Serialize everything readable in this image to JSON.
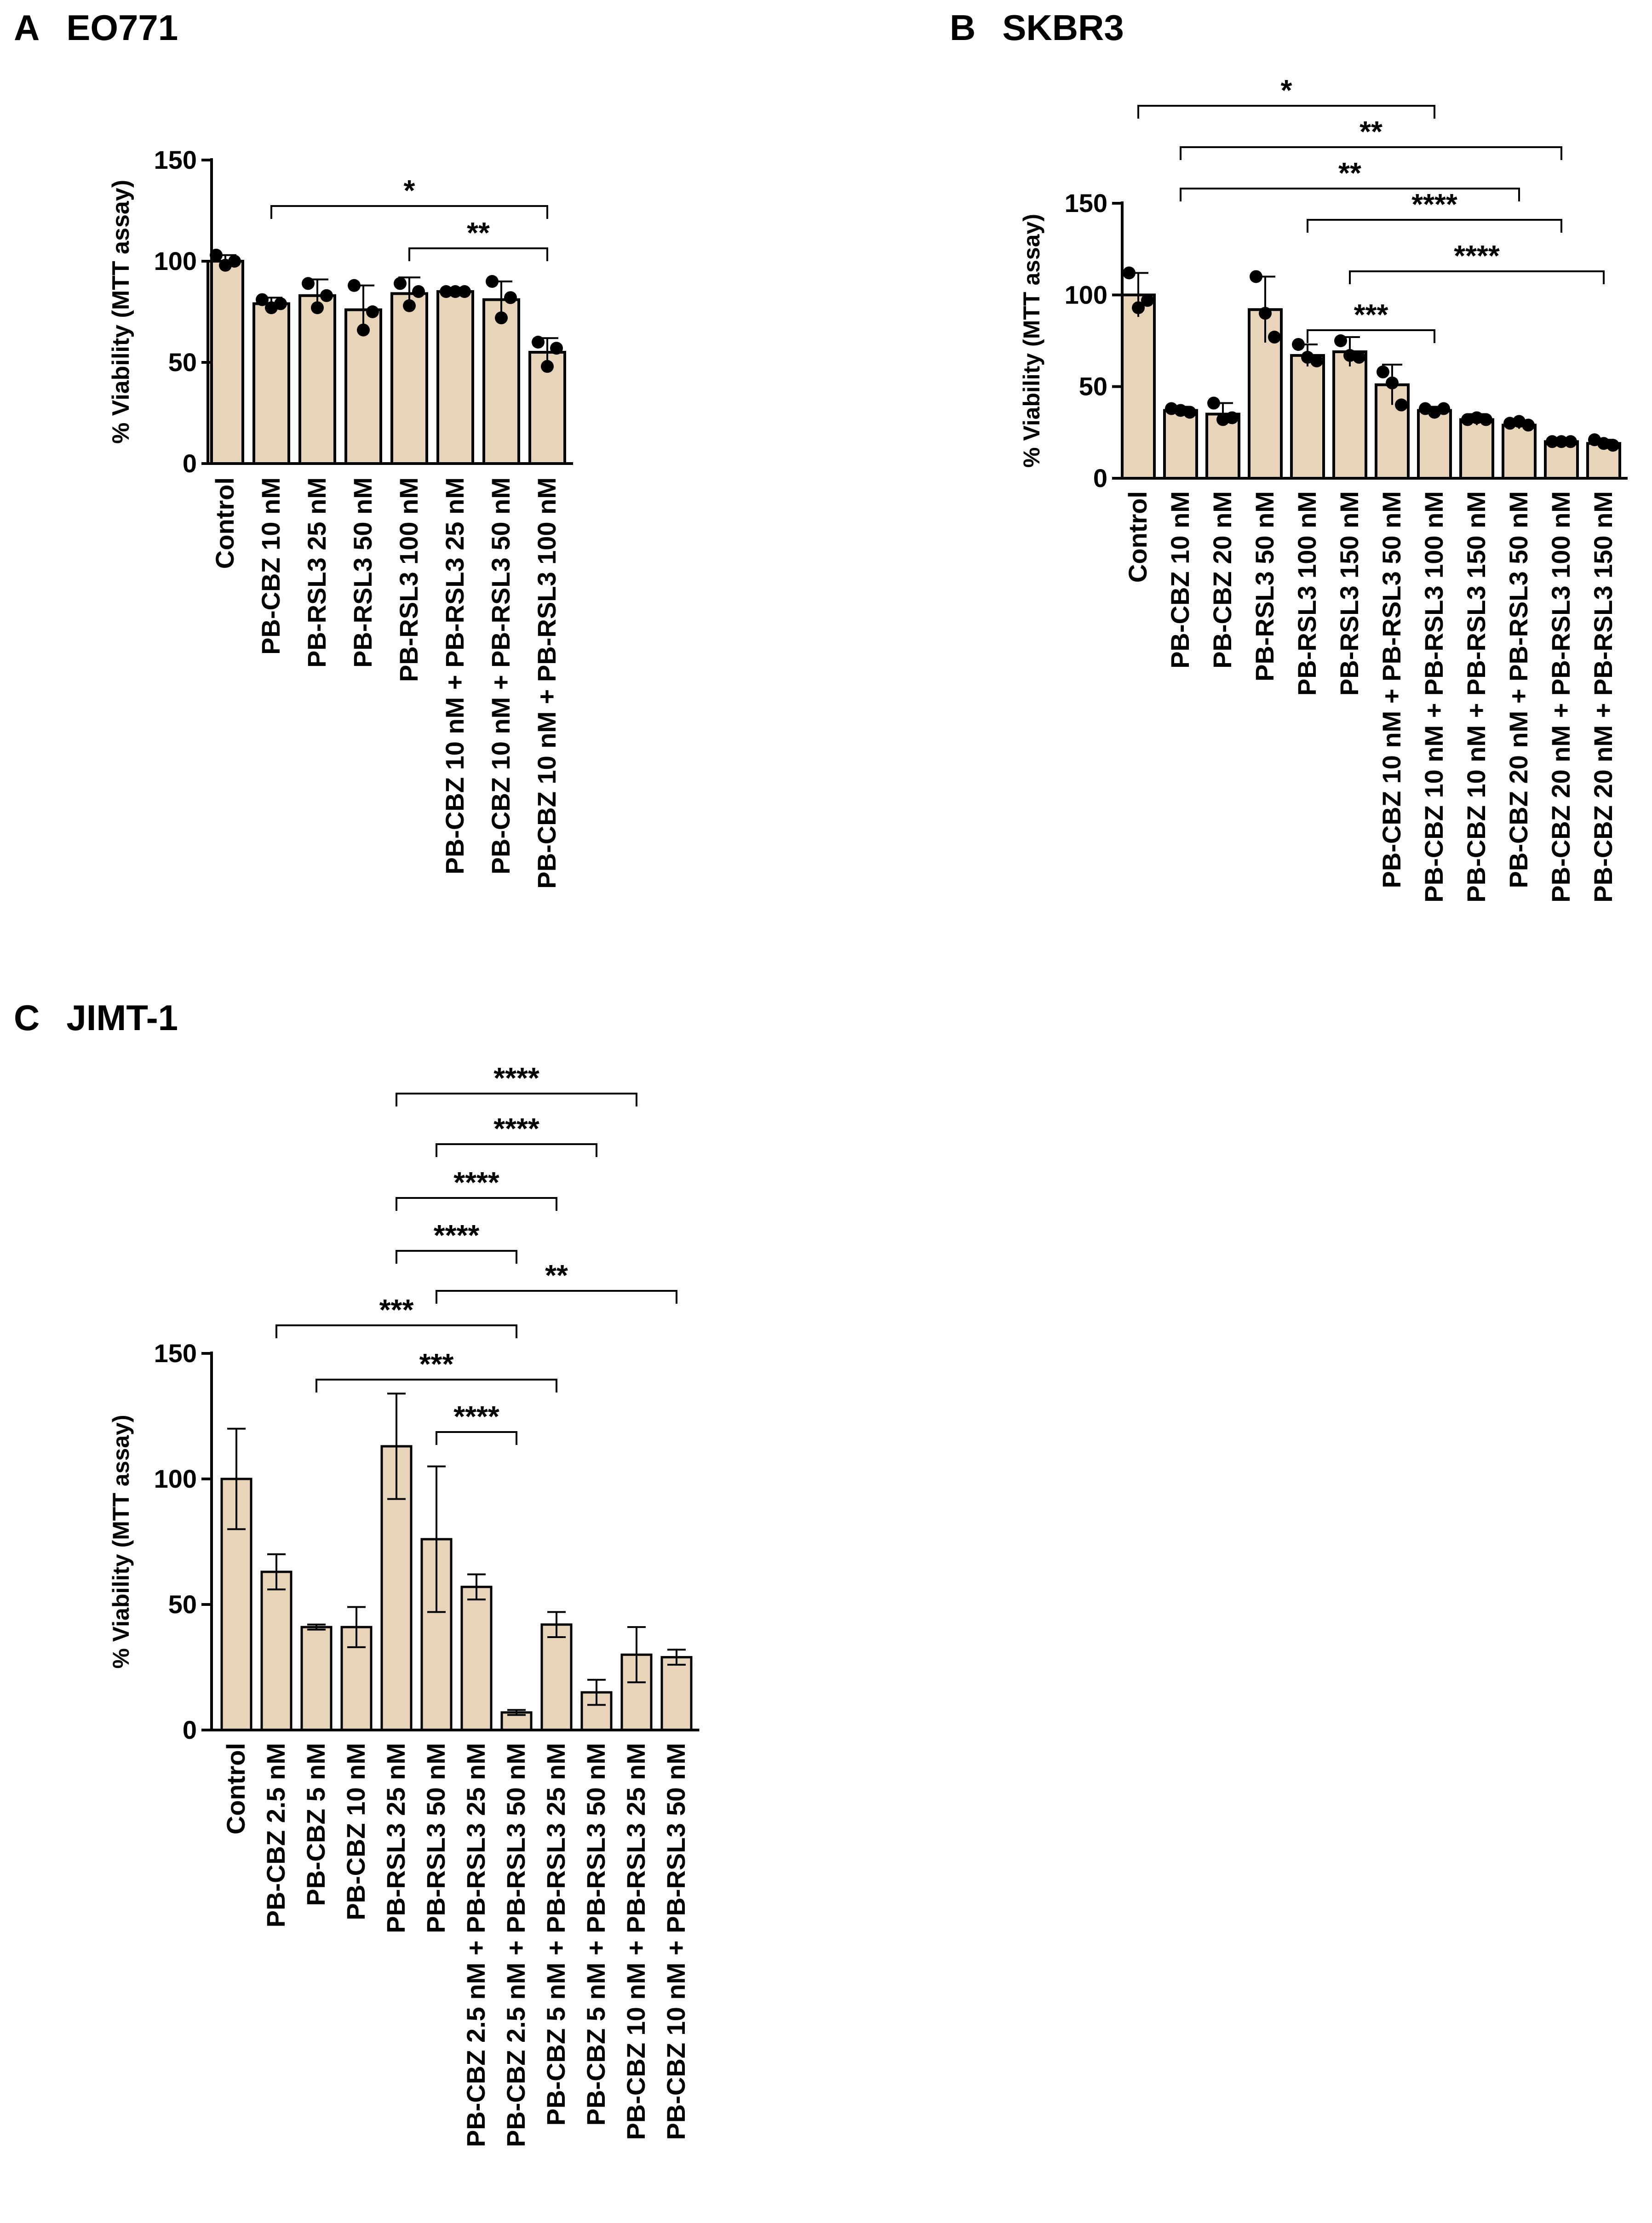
{
  "figure": {
    "panels": [
      {
        "letter": "A",
        "cell_line": "EO771"
      },
      {
        "letter": "B",
        "cell_line": "SKBR3"
      },
      {
        "letter": "C",
        "cell_line": "JIMT-1"
      }
    ]
  },
  "colors": {
    "bar_fill": "#e8d5b9",
    "bar_stroke": "#000000",
    "point": "#000000"
  },
  "chart_data": [
    {
      "id": "A",
      "type": "bar",
      "title": "EO771",
      "ylabel": "% Viability (MTT assay)",
      "xlabel": "",
      "ylim": [
        0,
        150
      ],
      "yticks": [
        0,
        50,
        100,
        150
      ],
      "categories": [
        "Control",
        "PB-CBZ 10 nM",
        "PB-RSL3 25 nM",
        "PB-RSL3 50 nM",
        "PB-RSL3 100 nM",
        "PB-CBZ 10 nM + PB-RSL3 25 nM",
        "PB-CBZ 10 nM + PB-RSL3 50 nM",
        "PB-CBZ 10 nM + PB-RSL3 100 nM"
      ],
      "values": [
        100,
        79,
        83,
        76,
        84,
        85,
        81,
        55
      ],
      "error": [
        3,
        3,
        8,
        12,
        8,
        1,
        9,
        7
      ],
      "points": [
        [
          103,
          98,
          100
        ],
        [
          81,
          77,
          79
        ],
        [
          89,
          77,
          83
        ],
        [
          88,
          66,
          75
        ],
        [
          89,
          78,
          85
        ],
        [
          85,
          85,
          85
        ],
        [
          90,
          72,
          82
        ],
        [
          60,
          48,
          57
        ]
      ],
      "comparisons": [
        {
          "from": 1,
          "to": 7,
          "label": "*"
        },
        {
          "from": 4,
          "to": 7,
          "label": "**"
        }
      ]
    },
    {
      "id": "B",
      "type": "bar",
      "title": "SKBR3",
      "ylabel": "% Viability (MTT assay)",
      "xlabel": "",
      "ylim": [
        0,
        150
      ],
      "yticks": [
        0,
        50,
        100,
        150
      ],
      "categories": [
        "Control",
        "PB-CBZ 10 nM",
        "PB-CBZ 20 nM",
        "PB-RSL3 50 nM",
        "PB-RSL3 100 nM",
        "PB-RSL3 150 nM",
        "PB-CBZ 10 nM + PB-RSL3 50 nM",
        "PB-CBZ 10 nM + PB-RSL3 100 nM",
        "PB-CBZ 10 nM + PB-RSL3 150 nM",
        "PB-CBZ 20 nM + PB-RSL3 50 nM",
        "PB-CBZ 20 nM + PB-RSL3 100 nM",
        "PB-CBZ 20 nM + PB-RSL3 150 nM"
      ],
      "values": [
        100,
        37,
        35,
        92,
        67,
        69,
        51,
        37,
        32,
        29,
        20,
        19
      ],
      "error": [
        12,
        2,
        6,
        18,
        6,
        8,
        11,
        2,
        3,
        2,
        1,
        2
      ],
      "points": [
        [
          112,
          93,
          97
        ],
        [
          38,
          37,
          36
        ],
        [
          41,
          32,
          33
        ],
        [
          110,
          90,
          77
        ],
        [
          73,
          66,
          64
        ],
        [
          75,
          67,
          66
        ],
        [
          58,
          52,
          40
        ],
        [
          38,
          36,
          38
        ],
        [
          32,
          33,
          32
        ],
        [
          30,
          31,
          29
        ],
        [
          20,
          20,
          20
        ],
        [
          21,
          19,
          18
        ]
      ],
      "comparisons": [
        {
          "from": 0,
          "to": 7,
          "label": "*"
        },
        {
          "from": 1,
          "to": 10,
          "label": "**"
        },
        {
          "from": 1,
          "to": 9,
          "label": "**"
        },
        {
          "from": 4,
          "to": 10,
          "label": "****"
        },
        {
          "from": 5,
          "to": 11,
          "label": "****"
        },
        {
          "from": 4,
          "to": 7,
          "label": "***"
        }
      ]
    },
    {
      "id": "C",
      "type": "bar",
      "title": "JIMT-1",
      "ylabel": "% Viability (MTT assay)",
      "xlabel": "",
      "ylim": [
        0,
        150
      ],
      "yticks": [
        0,
        50,
        100,
        150
      ],
      "categories": [
        "Control",
        "PB-CBZ 2.5 nM",
        "PB-CBZ 5 nM",
        "PB-CBZ 10 nM",
        "PB-RSL3 25 nM",
        "PB-RSL3 50 nM",
        "PB-CBZ 2.5 nM + PB-RSL3 25 nM",
        "PB-CBZ 2.5 nM + PB-RSL3 50 nM",
        "PB-CBZ 5 nM + PB-RSL3 25 nM",
        "PB-CBZ 5 nM + PB-RSL3 50 nM",
        "PB-CBZ 10 nM + PB-RSL3 25 nM",
        "PB-CBZ 10 nM + PB-RSL3 50 nM"
      ],
      "values": [
        100,
        63,
        41,
        41,
        113,
        76,
        57,
        7,
        42,
        15,
        30,
        29
      ],
      "error": [
        20,
        7,
        1,
        8,
        21,
        29,
        5,
        1,
        5,
        5,
        11,
        3
      ],
      "comparisons": [
        {
          "from": 4,
          "to": 10,
          "label": "****"
        },
        {
          "from": 5,
          "to": 9,
          "label": "****"
        },
        {
          "from": 4,
          "to": 8,
          "label": "****"
        },
        {
          "from": 4,
          "to": 7,
          "label": "****"
        },
        {
          "from": 5,
          "to": 11,
          "label": "**"
        },
        {
          "from": 1,
          "to": 7,
          "label": "***"
        },
        {
          "from": 2,
          "to": 8,
          "label": "***"
        },
        {
          "from": 5,
          "to": 7,
          "label": "****"
        }
      ]
    }
  ]
}
